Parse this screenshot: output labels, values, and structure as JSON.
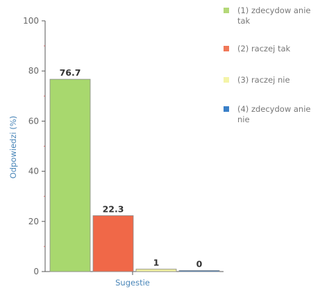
{
  "chart_data": {
    "type": "bar",
    "categories": [
      "Sugestie"
    ],
    "xlabel": "Sugestie",
    "ylabel": "Odpowiedzi (%)",
    "ylim": [
      0,
      100
    ],
    "yticks": [
      0,
      20,
      40,
      60,
      80,
      100
    ],
    "grid": false,
    "legend_position": "right",
    "series": [
      {
        "name": "(1) zdecydowanie tak",
        "values": [
          76.7
        ],
        "label": "76.7",
        "color": "#a8d86e"
      },
      {
        "name": "(2) raczej tak",
        "values": [
          22.3
        ],
        "label": "22.3",
        "color": "#f06848"
      },
      {
        "name": "(3) raczej nie",
        "values": [
          1
        ],
        "label": "1",
        "color": "#f0f0a0"
      },
      {
        "name": "(4) zdecydowanie nie",
        "values": [
          0
        ],
        "label": "0",
        "color": "#3a7fc8"
      }
    ],
    "legend": [
      {
        "lines": [
          "(1) zdecydow anie",
          "tak"
        ],
        "color": "#b4d878"
      },
      {
        "lines": [
          "(2) raczej tak"
        ],
        "color": "#f07858"
      },
      {
        "lines": [
          "(3) raczej nie"
        ],
        "color": "#f4f4a8"
      },
      {
        "lines": [
          "(4) zdecydow anie",
          "nie"
        ],
        "color": "#3a80c8"
      }
    ],
    "colors": {
      "axis": "#555555",
      "axis_title": "#4a86b8"
    }
  }
}
